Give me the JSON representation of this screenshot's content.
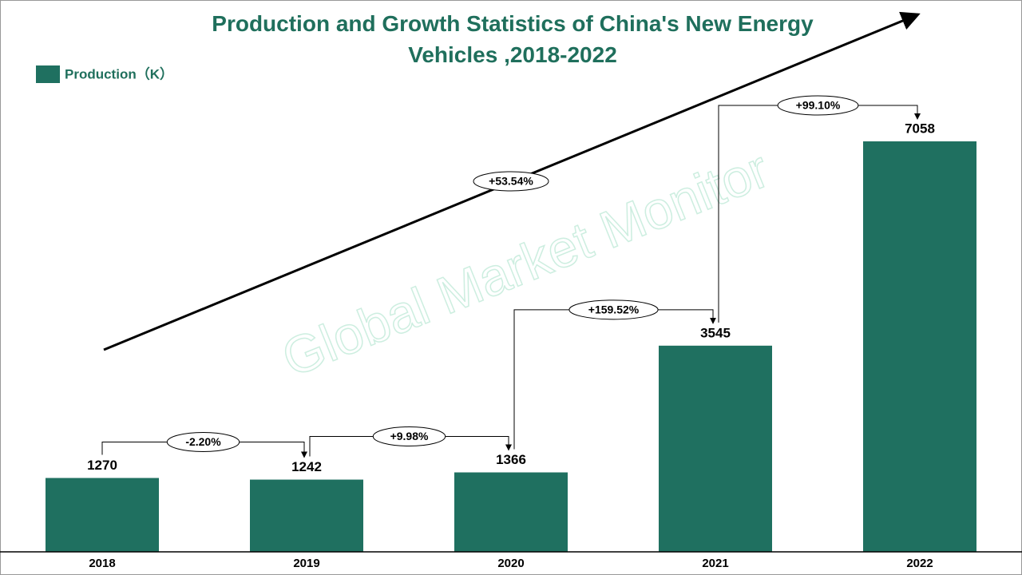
{
  "chart_data": {
    "type": "bar",
    "title": "Production and Growth Statistics of China's New Energy Vehicles ,2018-2022",
    "categories": [
      "2018",
      "2019",
      "2020",
      "2021",
      "2022"
    ],
    "series": [
      {
        "name": "Production（K）",
        "color": "#1f7060",
        "values": [
          1270,
          1242,
          1366,
          3545,
          7058
        ]
      }
    ],
    "growth_labels": [
      "-2.20%",
      "+9.98%",
      "+159.52%",
      "+99.10%"
    ],
    "cagr_label": "+53.54%",
    "watermark": "Global Market Monitor"
  }
}
